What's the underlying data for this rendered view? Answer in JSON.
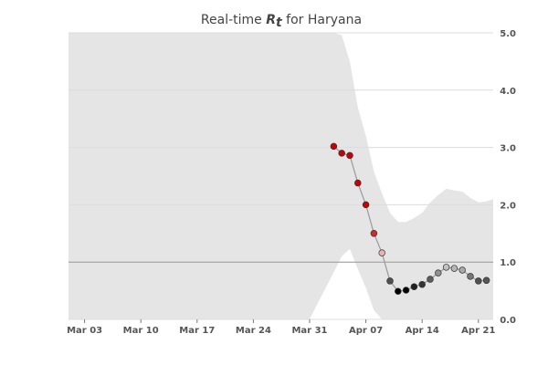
{
  "chart_data": {
    "type": "scatter",
    "title_prefix": "Real-time ",
    "title_symbol": "R",
    "title_subscript": "t",
    "title_suffix": " for Haryana",
    "xlabel": "",
    "ylabel": "",
    "x_start": "2020-03-01",
    "x_end": "2020-04-22",
    "ylim": [
      0,
      5
    ],
    "y_ticks": [
      "0.0",
      "1.0",
      "2.0",
      "3.0",
      "4.0",
      "5.0"
    ],
    "x_ticks": [
      {
        "label": "Mar 03",
        "date": "2020-03-03"
      },
      {
        "label": "Mar 10",
        "date": "2020-03-10"
      },
      {
        "label": "Mar 17",
        "date": "2020-03-17"
      },
      {
        "label": "Mar 24",
        "date": "2020-03-24"
      },
      {
        "label": "Mar 31",
        "date": "2020-03-31"
      },
      {
        "label": "Apr 07",
        "date": "2020-04-07"
      },
      {
        "label": "Apr 14",
        "date": "2020-04-14"
      },
      {
        "label": "Apr 21",
        "date": "2020-04-21"
      }
    ],
    "grid": true,
    "reference_line": 1.0,
    "colors": {
      "band": "#e5e5e5",
      "line": "#999999",
      "grid": "#dcdcdc",
      "reference": "#999999",
      "high": "#cc0000",
      "low": "#000000"
    },
    "band": [
      {
        "date": "2020-03-01",
        "low": 0.0,
        "high": 5.0
      },
      {
        "date": "2020-03-31",
        "low": 0.0,
        "high": 5.0
      },
      {
        "date": "2020-04-01",
        "low": 0.28,
        "high": 5.0
      },
      {
        "date": "2020-04-02",
        "low": 0.55,
        "high": 5.0
      },
      {
        "date": "2020-04-03",
        "low": 0.82,
        "high": 5.0
      },
      {
        "date": "2020-04-04",
        "low": 1.1,
        "high": 4.96
      },
      {
        "date": "2020-04-05",
        "low": 1.23,
        "high": 4.5
      },
      {
        "date": "2020-04-06",
        "low": 0.88,
        "high": 3.7
      },
      {
        "date": "2020-04-07",
        "low": 0.55,
        "high": 3.2
      },
      {
        "date": "2020-04-08",
        "low": 0.16,
        "high": 2.58
      },
      {
        "date": "2020-04-09",
        "low": 0.0,
        "high": 2.2
      },
      {
        "date": "2020-04-10",
        "low": 0.0,
        "high": 1.86
      },
      {
        "date": "2020-04-11",
        "low": 0.0,
        "high": 1.7
      },
      {
        "date": "2020-04-12",
        "low": 0.0,
        "high": 1.7
      },
      {
        "date": "2020-04-13",
        "low": 0.0,
        "high": 1.77
      },
      {
        "date": "2020-04-14",
        "low": 0.0,
        "high": 1.86
      },
      {
        "date": "2020-04-15",
        "low": 0.0,
        "high": 2.04
      },
      {
        "date": "2020-04-16",
        "low": 0.0,
        "high": 2.17
      },
      {
        "date": "2020-04-17",
        "low": 0.0,
        "high": 2.28
      },
      {
        "date": "2020-04-18",
        "low": 0.0,
        "high": 2.25
      },
      {
        "date": "2020-04-19",
        "low": 0.0,
        "high": 2.23
      },
      {
        "date": "2020-04-20",
        "low": 0.0,
        "high": 2.12
      },
      {
        "date": "2020-04-21",
        "low": 0.0,
        "high": 2.04
      },
      {
        "date": "2020-04-22",
        "low": 0.0,
        "high": 2.06
      },
      {
        "date": "2020-04-23",
        "low": 0.0,
        "high": 2.1
      }
    ],
    "points": [
      {
        "date": "2020-04-03",
        "value": 3.02
      },
      {
        "date": "2020-04-04",
        "value": 2.9
      },
      {
        "date": "2020-04-05",
        "value": 2.86
      },
      {
        "date": "2020-04-06",
        "value": 2.38
      },
      {
        "date": "2020-04-07",
        "value": 2.0
      },
      {
        "date": "2020-04-08",
        "value": 1.5
      },
      {
        "date": "2020-04-09",
        "value": 1.16
      },
      {
        "date": "2020-04-10",
        "value": 0.67
      },
      {
        "date": "2020-04-11",
        "value": 0.49
      },
      {
        "date": "2020-04-12",
        "value": 0.51
      },
      {
        "date": "2020-04-13",
        "value": 0.57
      },
      {
        "date": "2020-04-14",
        "value": 0.61
      },
      {
        "date": "2020-04-15",
        "value": 0.7
      },
      {
        "date": "2020-04-16",
        "value": 0.81
      },
      {
        "date": "2020-04-17",
        "value": 0.91
      },
      {
        "date": "2020-04-18",
        "value": 0.89
      },
      {
        "date": "2020-04-19",
        "value": 0.86
      },
      {
        "date": "2020-04-20",
        "value": 0.75
      },
      {
        "date": "2020-04-21",
        "value": 0.67
      },
      {
        "date": "2020-04-22",
        "value": 0.68
      }
    ]
  }
}
